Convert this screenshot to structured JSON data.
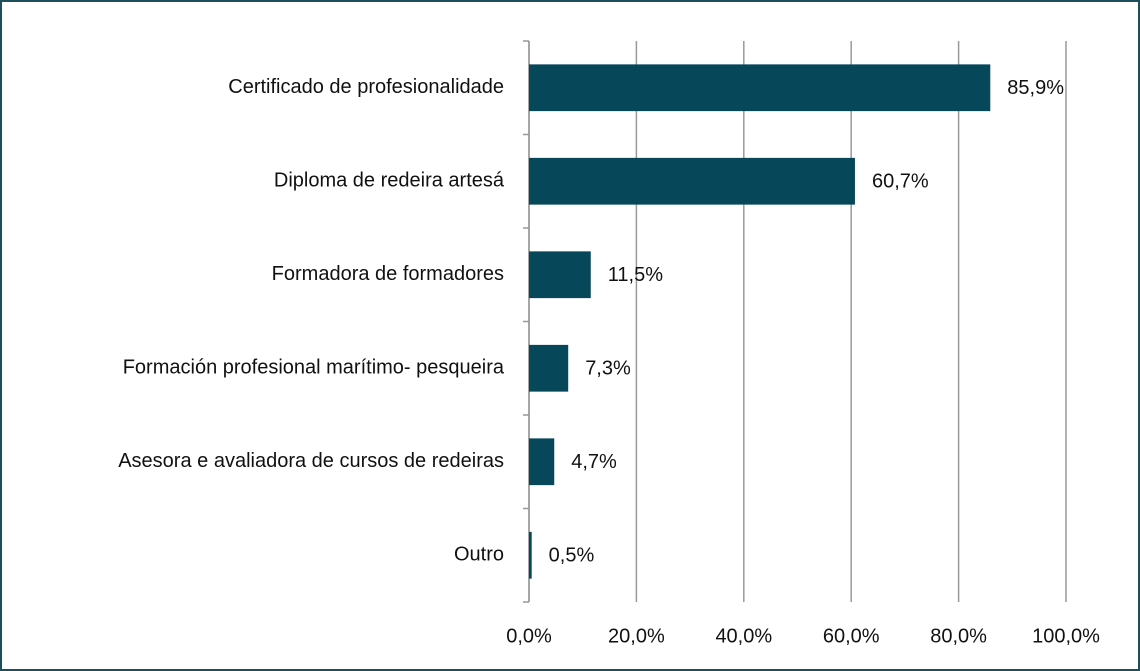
{
  "chart_data": {
    "type": "bar",
    "orientation": "horizontal",
    "categories": [
      "Certificado de profesionalidade",
      "Diploma de redeira artesá",
      "Formadora de formadores",
      "Formación profesional marítimo- pesqueira",
      "Asesora e avaliadora de cursos de redeiras",
      "Outro"
    ],
    "values": [
      85.9,
      60.7,
      11.5,
      7.3,
      4.7,
      0.5
    ],
    "value_labels": [
      "85,9%",
      "60,7%",
      "11,5%",
      "7,3%",
      "4,7%",
      "0,5%"
    ],
    "color": "#07475a",
    "xlim": [
      0,
      100
    ],
    "xticks": [
      {
        "value": 0,
        "label": "0,0%"
      },
      {
        "value": 20,
        "label": "20,0%"
      },
      {
        "value": 40,
        "label": "40,0%"
      },
      {
        "value": 60,
        "label": "60,0%"
      },
      {
        "value": 80,
        "label": "80,0%"
      },
      {
        "value": 100,
        "label": "100,0%"
      }
    ],
    "grid": true
  }
}
